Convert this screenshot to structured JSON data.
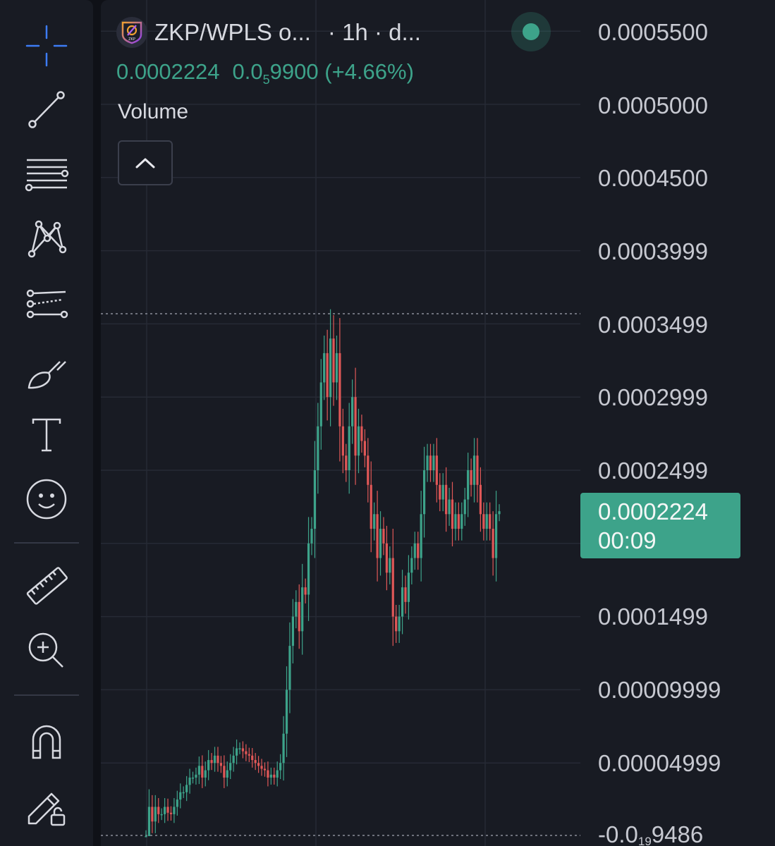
{
  "toolbar": {
    "tools": [
      {
        "name": "crosshair-tool",
        "icon": "crosshair-icon",
        "active": true
      },
      {
        "name": "trend-line-tool",
        "icon": "trend-line-icon"
      },
      {
        "name": "horizontal-lines-tool",
        "icon": "horizontal-lines-icon"
      },
      {
        "name": "pattern-tool",
        "icon": "pattern-icon"
      },
      {
        "name": "prediction-tool",
        "icon": "prediction-icon"
      },
      {
        "name": "brush-tool",
        "icon": "brush-icon"
      },
      {
        "name": "text-tool",
        "icon": "text-icon"
      },
      {
        "name": "emoji-tool",
        "icon": "smiley-icon"
      },
      {
        "name": "measure-tool",
        "icon": "ruler-icon"
      },
      {
        "name": "zoom-in-tool",
        "icon": "zoom-in-icon"
      },
      {
        "name": "magnet-tool",
        "icon": "magnet-icon"
      },
      {
        "name": "lock-drawings-tool",
        "icon": "pencil-lock-icon"
      }
    ],
    "accent_color": "#3d7cf5",
    "icon_color": "#d7d9e0"
  },
  "header": {
    "logo_text": "ZKP",
    "symbol": "ZKP/WPLS o...",
    "interval": "· 1h · d...",
    "live_status": "live-dot-icon",
    "last_price": "0.0002224",
    "change_abs_prefix": "0.0",
    "change_abs_sub": "5",
    "change_abs_rest": "9900",
    "change_pct": "(+4.66%)",
    "volume_label": "Volume",
    "collapse_icon": "chevron-up-icon"
  },
  "price_scale": {
    "labels": [
      {
        "text": "0.0005500"
      },
      {
        "text": "0.0005000"
      },
      {
        "text": "0.0004500"
      },
      {
        "text": "0.0003999"
      },
      {
        "text": "0.0003499"
      },
      {
        "text": "0.0002999"
      },
      {
        "text": "0.0002499"
      },
      {
        "text": "0.0001499"
      },
      {
        "text": "0.00009999"
      },
      {
        "text": "0.00004999"
      }
    ],
    "bottom_label": {
      "prefix": "-0.0",
      "sub": "19",
      "rest": "9486"
    },
    "current_price": "0.0002224",
    "countdown": "00:09"
  },
  "colors": {
    "up": "#3da38a",
    "down": "#e05757",
    "background": "#181b23",
    "grid": "#262a35"
  },
  "chart_data": {
    "type": "candlestick",
    "interval": "1h",
    "high_marker": 0.000358,
    "ylim": [
      -5e-07,
      0.00055
    ],
    "close_path": [
      [
        0,
        0.0
      ],
      [
        1,
        2e-05
      ],
      [
        2,
        1e-05
      ],
      [
        3,
        2e-05
      ],
      [
        4,
        1.5e-05
      ],
      [
        5,
        1.5e-05
      ],
      [
        6,
        2e-05
      ],
      [
        7,
        1.6e-05
      ],
      [
        8,
        1.5e-05
      ],
      [
        9,
        2e-05
      ],
      [
        10,
        2.5e-05
      ],
      [
        11,
        3e-05
      ],
      [
        12,
        3e-05
      ],
      [
        13,
        3.5e-05
      ],
      [
        14,
        4e-05
      ],
      [
        15,
        4e-05
      ],
      [
        16,
        4.2e-05
      ],
      [
        17,
        4.8e-05
      ],
      [
        18,
        4e-05
      ],
      [
        19,
        4.5e-05
      ],
      [
        20,
        5.2e-05
      ],
      [
        21,
        5e-05
      ],
      [
        22,
        5.5e-05
      ],
      [
        23,
        5e-05
      ],
      [
        24,
        4.8e-05
      ],
      [
        25,
        4e-05
      ],
      [
        26,
        4.5e-05
      ],
      [
        27,
        5e-05
      ],
      [
        28,
        5.5e-05
      ],
      [
        29,
        6e-05
      ],
      [
        30,
        6e-05
      ],
      [
        31,
        5.8e-05
      ],
      [
        32,
        5.6e-05
      ],
      [
        33,
        5.5e-05
      ],
      [
        34,
        5.2e-05
      ],
      [
        35,
        5e-05
      ],
      [
        36,
        4.8e-05
      ],
      [
        37,
        4.6e-05
      ],
      [
        38,
        4.5e-05
      ],
      [
        39,
        4e-05
      ],
      [
        40,
        4.2e-05
      ],
      [
        41,
        4e-05
      ],
      [
        42,
        4.5e-05
      ],
      [
        43,
        5e-05
      ],
      [
        44,
        7e-05
      ],
      [
        45,
        0.0001
      ],
      [
        46,
        0.00013
      ],
      [
        47,
        0.00015
      ],
      [
        48,
        0.00016
      ],
      [
        49,
        0.00014
      ],
      [
        50,
        0.00017
      ],
      [
        51,
        0.000165
      ],
      [
        52,
        0.0002
      ],
      [
        53,
        0.00021
      ],
      [
        54,
        0.00025
      ],
      [
        55,
        0.00028
      ],
      [
        56,
        0.00031
      ],
      [
        57,
        0.00033
      ],
      [
        58,
        0.0003
      ],
      [
        59,
        0.00034
      ],
      [
        60,
        0.00031
      ],
      [
        61,
        0.00033
      ],
      [
        62,
        0.00028
      ],
      [
        63,
        0.00026
      ],
      [
        64,
        0.00025
      ],
      [
        65,
        0.00028
      ],
      [
        66,
        0.0003
      ],
      [
        67,
        0.00026
      ],
      [
        68,
        0.00028
      ],
      [
        69,
        0.00027
      ],
      [
        70,
        0.00026
      ],
      [
        71,
        0.00024
      ],
      [
        72,
        0.00021
      ],
      [
        73,
        0.00022
      ],
      [
        74,
        0.00019
      ],
      [
        75,
        0.00021
      ],
      [
        76,
        0.0002
      ],
      [
        77,
        0.00018
      ],
      [
        78,
        0.00019
      ],
      [
        79,
        0.00015
      ],
      [
        80,
        0.00014
      ],
      [
        81,
        0.00015
      ],
      [
        82,
        0.00017
      ],
      [
        83,
        0.00016
      ],
      [
        84,
        0.00018
      ],
      [
        85,
        0.00019
      ],
      [
        86,
        0.0002
      ],
      [
        87,
        0.00019
      ],
      [
        88,
        0.00022
      ],
      [
        89,
        0.00025
      ],
      [
        90,
        0.00026
      ],
      [
        91,
        0.00025
      ],
      [
        92,
        0.00026
      ],
      [
        93,
        0.00024
      ],
      [
        94,
        0.00023
      ],
      [
        95,
        0.00024
      ],
      [
        96,
        0.00022
      ],
      [
        97,
        0.00023
      ],
      [
        98,
        0.00021
      ],
      [
        99,
        0.00022
      ],
      [
        100,
        0.00021
      ],
      [
        101,
        0.00022
      ],
      [
        102,
        0.00023
      ],
      [
        103,
        0.00025
      ],
      [
        104,
        0.00024
      ],
      [
        105,
        0.00026
      ],
      [
        106,
        0.00024
      ],
      [
        107,
        0.00022
      ],
      [
        108,
        0.00021
      ],
      [
        109,
        0.00022
      ],
      [
        110,
        0.00021
      ],
      [
        111,
        0.00019
      ],
      [
        112,
        0.00022
      ],
      [
        113,
        0.000222
      ]
    ]
  }
}
